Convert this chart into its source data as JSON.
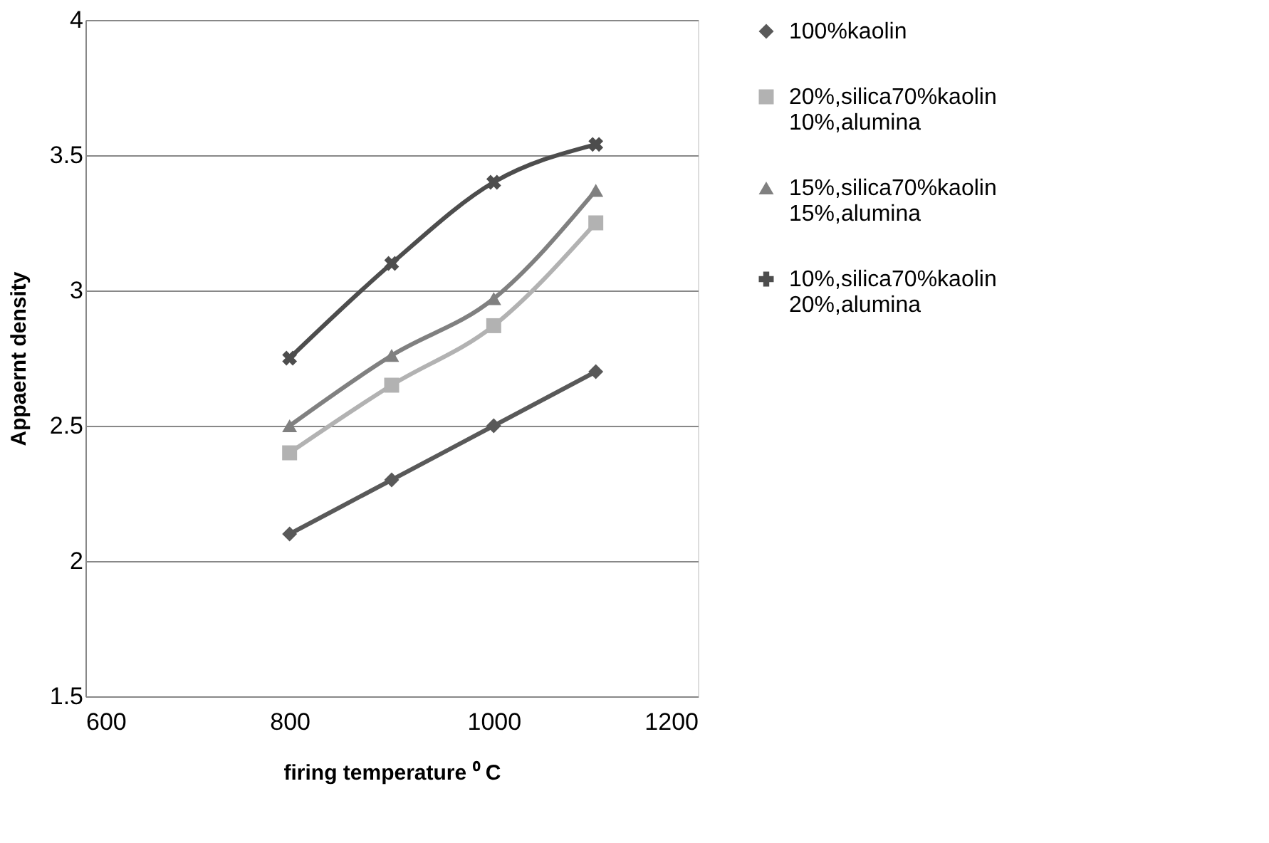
{
  "chart_data": {
    "type": "line",
    "xlabel": "firing temperature ⁰ C",
    "ylabel": "Appaernt density",
    "xlim": [
      600,
      1200
    ],
    "xticks": [
      600,
      800,
      1000,
      1200
    ],
    "ylim": [
      1.5,
      4
    ],
    "yticks": [
      1.5,
      2,
      2.5,
      3,
      3.5,
      4
    ],
    "grid": "y",
    "legend": "right",
    "x": [
      800,
      900,
      1000,
      1100
    ],
    "series": [
      {
        "name": "100%kaolin",
        "color": "#595959",
        "marker": "diamond",
        "values": [
          2.1,
          2.3,
          2.5,
          2.7
        ]
      },
      {
        "name": "20%,silica70%kaolin\n10%,alumina",
        "color": "#b2b2b2",
        "marker": "square",
        "values": [
          2.4,
          2.65,
          2.87,
          3.25
        ]
      },
      {
        "name": "15%,silica70%kaolin\n15%,alumina",
        "color": "#808080",
        "marker": "triangle",
        "values": [
          2.5,
          2.76,
          2.97,
          3.37
        ]
      },
      {
        "name": "10%,silica70%kaolin\n20%,alumina",
        "color": "#4d4d4d",
        "marker": "cross",
        "values": [
          2.75,
          3.1,
          3.4,
          3.54
        ]
      }
    ]
  }
}
